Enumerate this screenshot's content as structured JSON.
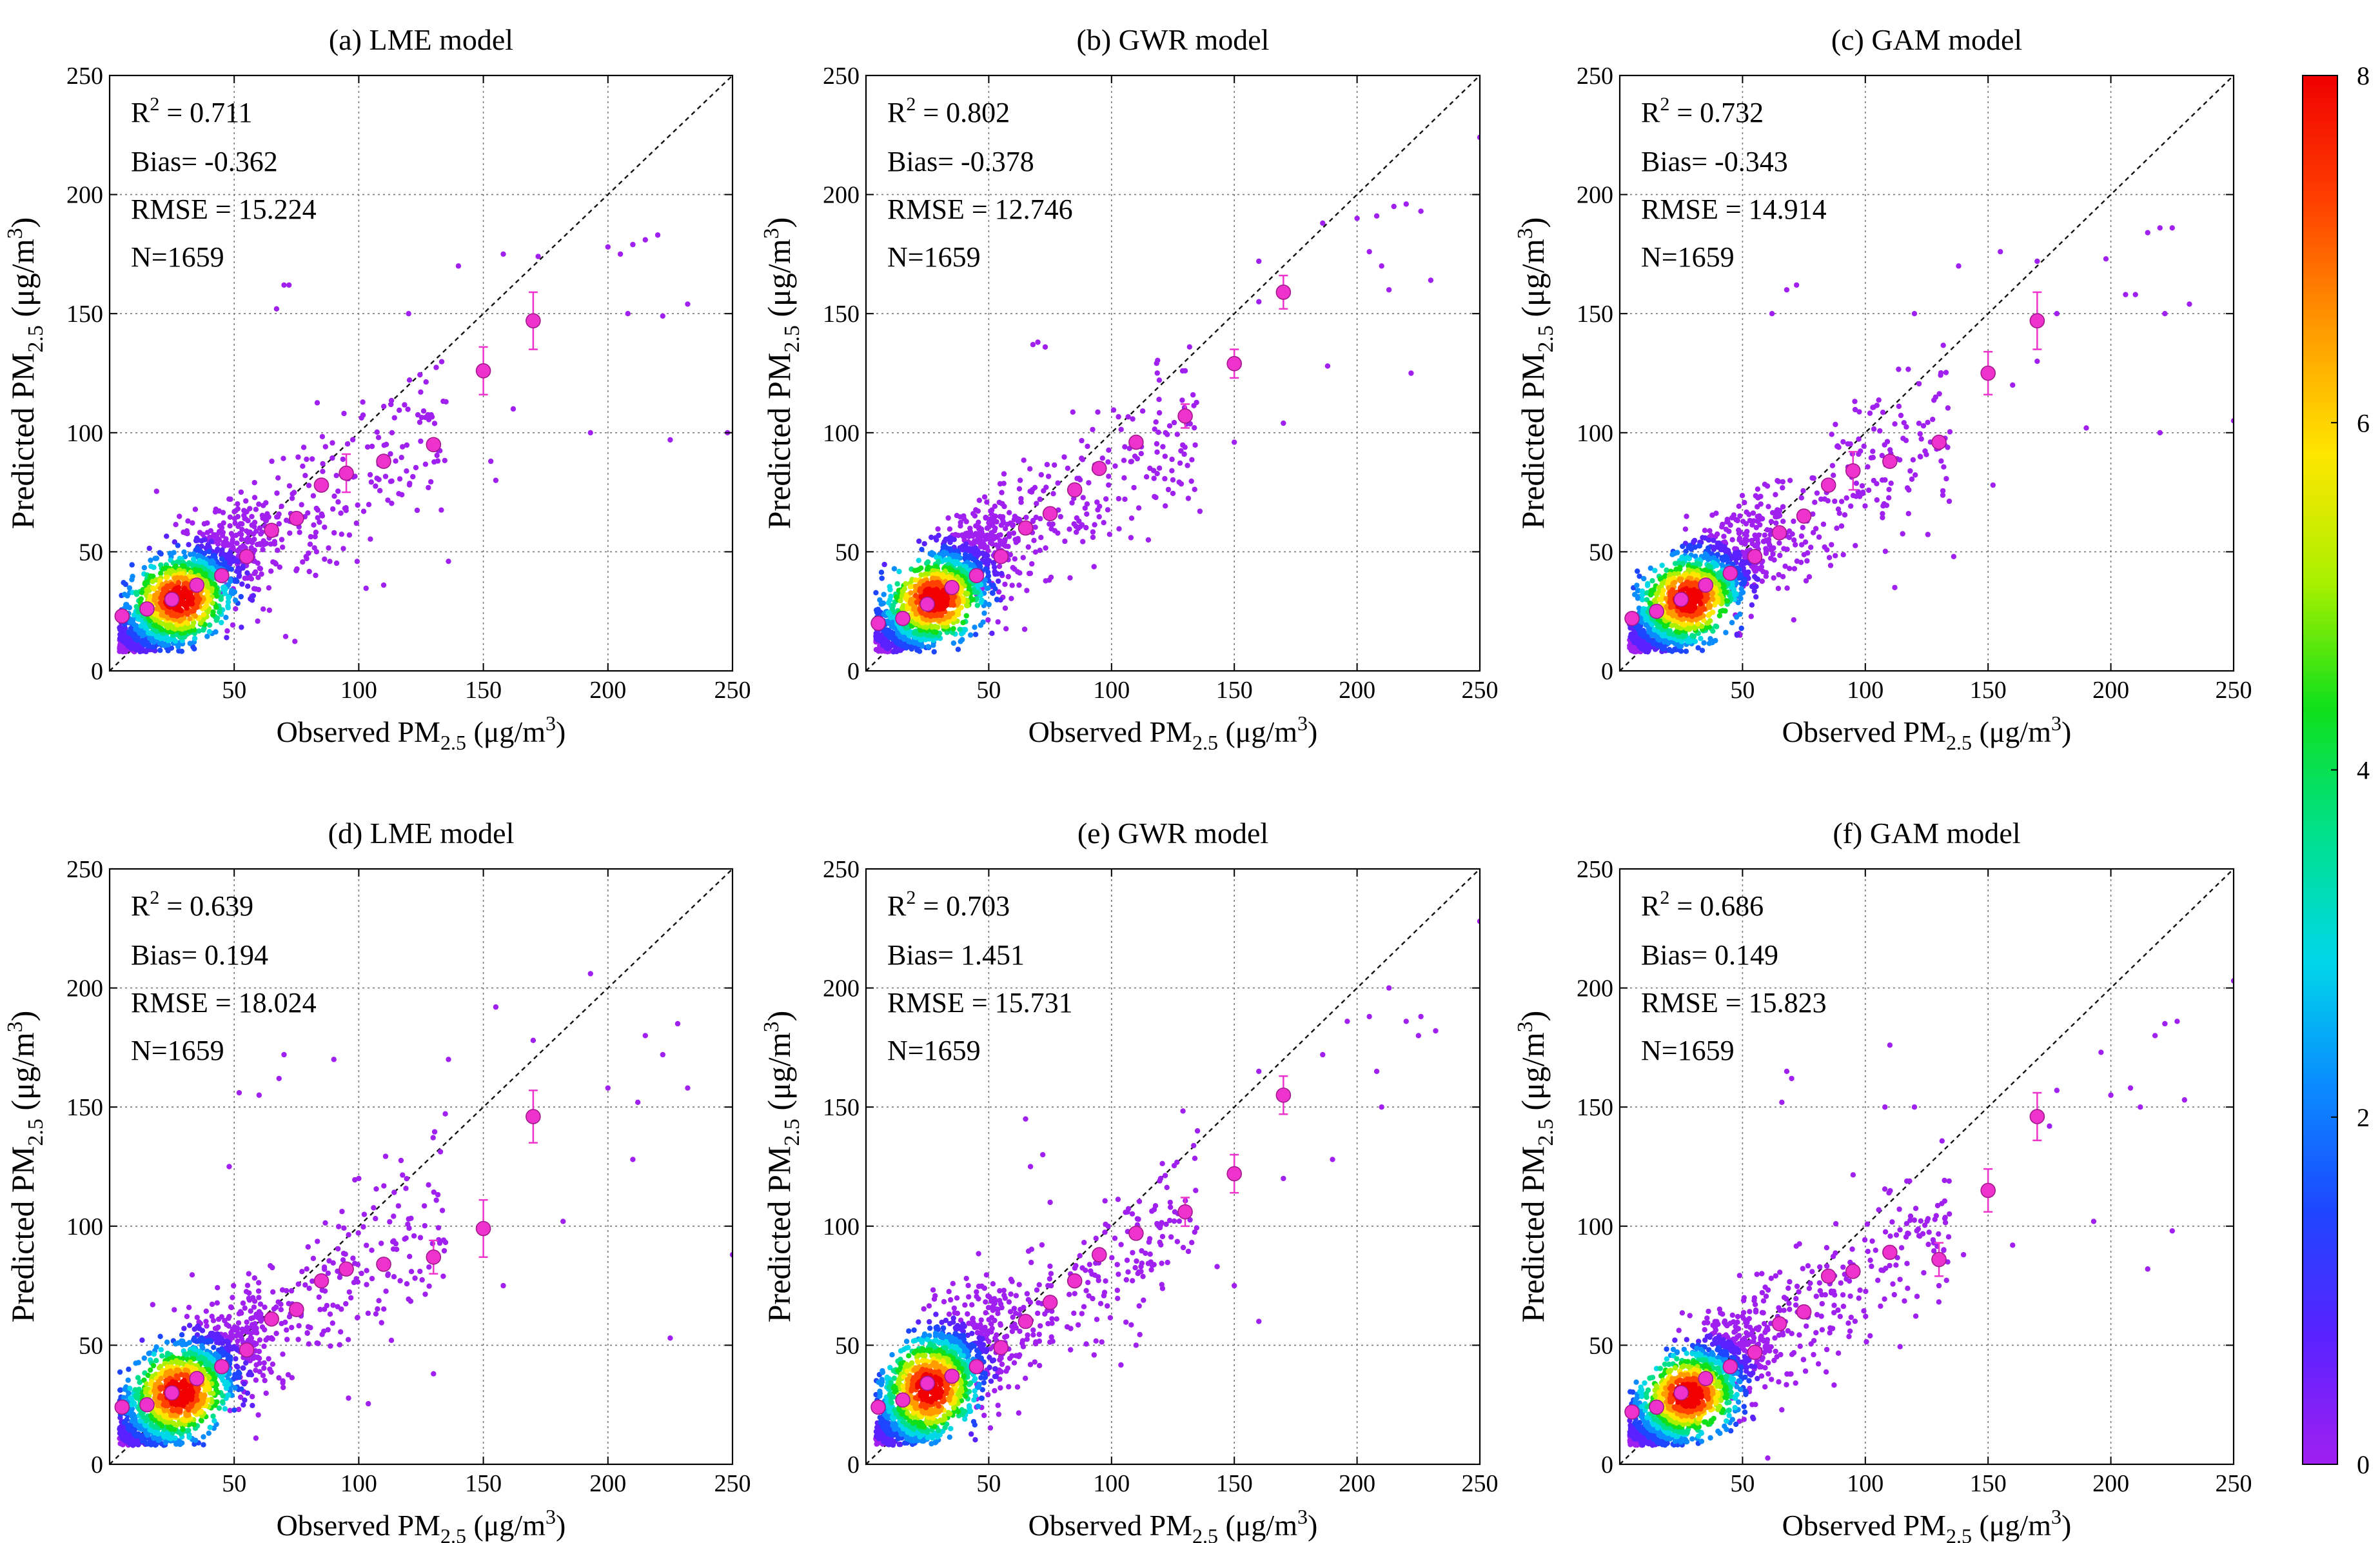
{
  "figure": {
    "colorbar": {
      "min": 0,
      "max": 8,
      "ticks": [
        "0",
        "2",
        "4",
        "6",
        "8"
      ],
      "colors": [
        "#a020f0",
        "#5a22ff",
        "#1e46ff",
        "#0a8cff",
        "#00d8e8",
        "#00e08a",
        "#10e01a",
        "#aaf000",
        "#ffe600",
        "#ff9a00",
        "#ff4000",
        "#f00000"
      ]
    }
  },
  "chart_data": [
    {
      "type": "scatter",
      "id": "a",
      "title": "(a) LME model",
      "xlabel": "Observed PM2.5 (μg/m3)",
      "ylabel": "Predicted PM2.5 (μg/m3)",
      "xlim": [
        0,
        250
      ],
      "ylim": [
        0,
        250
      ],
      "x_ticks": [
        "50",
        "100",
        "150",
        "200",
        "250"
      ],
      "y_ticks": [
        "0",
        "50",
        "100",
        "150",
        "200",
        "250"
      ],
      "grid": true,
      "one_to_one_line": true,
      "stats": {
        "r2": "R2 = 0.711",
        "bias": "Bias= -0.362",
        "rmse": "RMSE = 15.224",
        "n": "N=1659"
      },
      "stats_values": {
        "r2": 0.711,
        "bias": -0.362,
        "rmse": 15.224,
        "n": 1659
      },
      "density_cloud": {
        "center": [
          28,
          30
        ],
        "spread": [
          16,
          11
        ],
        "slope": 0.75
      },
      "binned_means": [
        [
          5,
          23
        ],
        [
          15,
          26
        ],
        [
          25,
          30
        ],
        [
          35,
          36
        ],
        [
          45,
          40
        ],
        [
          55,
          48
        ],
        [
          65,
          59
        ],
        [
          75,
          64
        ],
        [
          85,
          78
        ],
        [
          95,
          83
        ],
        [
          110,
          88
        ],
        [
          130,
          95
        ],
        [
          150,
          126
        ],
        [
          170,
          147
        ]
      ],
      "error_bars": [
        [
          95,
          8
        ],
        [
          150,
          10
        ],
        [
          170,
          12
        ]
      ],
      "outliers": [
        [
          70,
          162
        ],
        [
          67,
          152
        ],
        [
          72,
          162
        ],
        [
          140,
          170
        ],
        [
          158,
          175
        ],
        [
          172,
          174
        ],
        [
          200,
          178
        ],
        [
          205,
          175
        ],
        [
          210,
          179
        ],
        [
          215,
          181
        ],
        [
          220,
          183
        ],
        [
          208,
          150
        ],
        [
          222,
          149
        ],
        [
          232,
          154
        ],
        [
          248,
          100
        ],
        [
          225,
          97
        ],
        [
          193,
          100
        ],
        [
          153,
          88
        ],
        [
          162,
          110
        ],
        [
          120,
          150
        ],
        [
          135,
          113
        ],
        [
          136,
          46
        ],
        [
          155,
          80
        ],
        [
          110,
          36
        ]
      ]
    },
    {
      "type": "scatter",
      "id": "b",
      "title": "(b) GWR model",
      "xlabel": "Observed PM2.5 (μg/m3)",
      "ylabel": "Predicted PM2.5 (μg/m3)",
      "xlim": [
        0,
        250
      ],
      "ylim": [
        0,
        250
      ],
      "x_ticks": [
        "50",
        "100",
        "150",
        "200",
        "250"
      ],
      "y_ticks": [
        "0",
        "50",
        "100",
        "150",
        "200",
        "250"
      ],
      "grid": true,
      "one_to_one_line": true,
      "stats": {
        "r2": "R2 = 0.802",
        "bias": "Bias= -0.378",
        "rmse": "RMSE = 12.746",
        "n": "N=1659"
      },
      "stats_values": {
        "r2": 0.802,
        "bias": -0.378,
        "rmse": 12.746,
        "n": 1659
      },
      "density_cloud": {
        "center": [
          28,
          30
        ],
        "spread": [
          16,
          11
        ],
        "slope": 0.85
      },
      "binned_means": [
        [
          5,
          20
        ],
        [
          15,
          22
        ],
        [
          25,
          28
        ],
        [
          35,
          35
        ],
        [
          45,
          40
        ],
        [
          55,
          48
        ],
        [
          65,
          60
        ],
        [
          75,
          66
        ],
        [
          85,
          76
        ],
        [
          95,
          85
        ],
        [
          110,
          96
        ],
        [
          130,
          107
        ],
        [
          150,
          129
        ],
        [
          170,
          159
        ]
      ],
      "error_bars": [
        [
          130,
          5
        ],
        [
          150,
          6
        ],
        [
          170,
          7
        ]
      ],
      "outliers": [
        [
          68,
          137
        ],
        [
          70,
          138
        ],
        [
          73,
          136
        ],
        [
          130,
          126
        ],
        [
          160,
          172
        ],
        [
          186,
          188
        ],
        [
          200,
          190
        ],
        [
          208,
          191
        ],
        [
          215,
          195
        ],
        [
          220,
          196
        ],
        [
          226,
          193
        ],
        [
          205,
          176
        ],
        [
          210,
          170
        ],
        [
          213,
          160
        ],
        [
          230,
          164
        ],
        [
          250,
          224
        ],
        [
          222,
          125
        ],
        [
          188,
          128
        ],
        [
          150,
          96
        ],
        [
          170,
          104
        ],
        [
          136,
          67
        ],
        [
          115,
          55
        ],
        [
          122,
          100
        ],
        [
          160,
          155
        ]
      ]
    },
    {
      "type": "scatter",
      "id": "c",
      "title": "(c) GAM model",
      "xlabel": "Observed PM2.5 (μg/m3)",
      "ylabel": "Predicted PM2.5 (μg/m3)",
      "xlim": [
        0,
        250
      ],
      "ylim": [
        0,
        250
      ],
      "x_ticks": [
        "50",
        "100",
        "150",
        "200",
        "250"
      ],
      "y_ticks": [
        "0",
        "50",
        "100",
        "150",
        "200",
        "250"
      ],
      "grid": true,
      "one_to_one_line": true,
      "stats": {
        "r2": "R2 = 0.732",
        "bias": "Bias= -0.343",
        "rmse": "RMSE = 14.914",
        "n": "N=1659"
      },
      "stats_values": {
        "r2": 0.732,
        "bias": -0.343,
        "rmse": 14.914,
        "n": 1659
      },
      "density_cloud": {
        "center": [
          28,
          30
        ],
        "spread": [
          16,
          11
        ],
        "slope": 0.78
      },
      "binned_means": [
        [
          5,
          22
        ],
        [
          15,
          25
        ],
        [
          25,
          30
        ],
        [
          35,
          36
        ],
        [
          45,
          41
        ],
        [
          55,
          48
        ],
        [
          65,
          58
        ],
        [
          75,
          65
        ],
        [
          85,
          78
        ],
        [
          95,
          84
        ],
        [
          110,
          88
        ],
        [
          130,
          96
        ],
        [
          150,
          125
        ],
        [
          170,
          147
        ]
      ],
      "error_bars": [
        [
          95,
          8
        ],
        [
          150,
          9
        ],
        [
          170,
          12
        ]
      ],
      "outliers": [
        [
          68,
          160
        ],
        [
          72,
          162
        ],
        [
          62,
          150
        ],
        [
          138,
          170
        ],
        [
          155,
          176
        ],
        [
          170,
          172
        ],
        [
          198,
          173
        ],
        [
          206,
          158
        ],
        [
          210,
          158
        ],
        [
          215,
          184
        ],
        [
          220,
          186
        ],
        [
          225,
          186
        ],
        [
          232,
          154
        ],
        [
          222,
          150
        ],
        [
          250,
          105
        ],
        [
          190,
          102
        ],
        [
          220,
          100
        ],
        [
          160,
          120
        ],
        [
          170,
          130
        ],
        [
          152,
          78
        ],
        [
          136,
          48
        ],
        [
          112,
          35
        ],
        [
          120,
          150
        ],
        [
          178,
          150
        ]
      ]
    },
    {
      "type": "scatter",
      "id": "d",
      "title": "(d) LME model",
      "xlabel": "Observed PM2.5 (μg/m3)",
      "ylabel": "Predicted PM2.5 (μg/m3)",
      "xlim": [
        0,
        250
      ],
      "ylim": [
        0,
        250
      ],
      "x_ticks": [
        "50",
        "100",
        "150",
        "200",
        "250"
      ],
      "y_ticks": [
        "0",
        "50",
        "100",
        "150",
        "200",
        "250"
      ],
      "grid": true,
      "one_to_one_line": true,
      "stats": {
        "r2": "R2 = 0.639",
        "bias": "Bias= 0.194",
        "rmse": "RMSE = 18.024",
        "n": "N=1659"
      },
      "stats_values": {
        "r2": 0.639,
        "bias": 0.194,
        "rmse": 18.024,
        "n": 1659
      },
      "density_cloud": {
        "center": [
          28,
          30
        ],
        "spread": [
          16,
          12
        ],
        "slope": 0.72
      },
      "binned_means": [
        [
          5,
          24
        ],
        [
          15,
          25
        ],
        [
          25,
          30
        ],
        [
          35,
          36
        ],
        [
          45,
          41
        ],
        [
          55,
          48
        ],
        [
          65,
          61
        ],
        [
          75,
          65
        ],
        [
          85,
          77
        ],
        [
          95,
          82
        ],
        [
          110,
          84
        ],
        [
          130,
          87
        ],
        [
          150,
          99
        ],
        [
          170,
          146
        ]
      ],
      "error_bars": [
        [
          130,
          7
        ],
        [
          150,
          12
        ],
        [
          170,
          11
        ]
      ],
      "outliers": [
        [
          70,
          172
        ],
        [
          68,
          162
        ],
        [
          52,
          156
        ],
        [
          60,
          155
        ],
        [
          136,
          170
        ],
        [
          155,
          192
        ],
        [
          170,
          178
        ],
        [
          193,
          206
        ],
        [
          200,
          158
        ],
        [
          212,
          152
        ],
        [
          215,
          180
        ],
        [
          222,
          172
        ],
        [
          228,
          185
        ],
        [
          232,
          158
        ],
        [
          250,
          88
        ],
        [
          225,
          53
        ],
        [
          182,
          102
        ],
        [
          130,
          38
        ],
        [
          158,
          75
        ],
        [
          120,
          103
        ],
        [
          100,
          120
        ],
        [
          90,
          170
        ],
        [
          48,
          125
        ],
        [
          210,
          128
        ]
      ]
    },
    {
      "type": "scatter",
      "id": "e",
      "title": "(e) GWR model",
      "xlabel": "Observed PM2.5 (μg/m3)",
      "ylabel": "Predicted PM2.5 (μg/m3)",
      "xlim": [
        0,
        250
      ],
      "ylim": [
        0,
        250
      ],
      "x_ticks": [
        "50",
        "100",
        "150",
        "200",
        "250"
      ],
      "y_ticks": [
        "0",
        "50",
        "100",
        "150",
        "200",
        "250"
      ],
      "grid": true,
      "one_to_one_line": true,
      "stats": {
        "r2": "R2 = 0.703",
        "bias": "Bias= 1.451",
        "rmse": "RMSE = 15.731",
        "n": "N=1659"
      },
      "stats_values": {
        "r2": 0.703,
        "bias": 1.451,
        "rmse": 15.731,
        "n": 1659
      },
      "density_cloud": {
        "center": [
          26,
          32
        ],
        "spread": [
          15,
          13
        ],
        "slope": 0.82
      },
      "binned_means": [
        [
          5,
          24
        ],
        [
          15,
          27
        ],
        [
          25,
          34
        ],
        [
          35,
          37
        ],
        [
          45,
          41
        ],
        [
          55,
          49
        ],
        [
          65,
          60
        ],
        [
          75,
          68
        ],
        [
          85,
          77
        ],
        [
          95,
          88
        ],
        [
          110,
          97
        ],
        [
          130,
          106
        ],
        [
          150,
          122
        ],
        [
          170,
          155
        ]
      ],
      "error_bars": [
        [
          130,
          6
        ],
        [
          150,
          8
        ],
        [
          170,
          8
        ]
      ],
      "outliers": [
        [
          65,
          145
        ],
        [
          72,
          130
        ],
        [
          67,
          125
        ],
        [
          135,
          140
        ],
        [
          160,
          165
        ],
        [
          186,
          172
        ],
        [
          196,
          186
        ],
        [
          205,
          188
        ],
        [
          213,
          200
        ],
        [
          220,
          186
        ],
        [
          226,
          188
        ],
        [
          232,
          182
        ],
        [
          208,
          165
        ],
        [
          210,
          150
        ],
        [
          250,
          228
        ],
        [
          190,
          128
        ],
        [
          160,
          60
        ],
        [
          150,
          75
        ],
        [
          120,
          120
        ],
        [
          143,
          83
        ],
        [
          110,
          50
        ],
        [
          75,
          110
        ],
        [
          225,
          180
        ],
        [
          170,
          120
        ]
      ]
    },
    {
      "type": "scatter",
      "id": "f",
      "title": "(f) GAM model",
      "xlabel": "Observed PM2.5 (μg/m3)",
      "ylabel": "Predicted PM2.5 (μg/m3)",
      "xlim": [
        0,
        250
      ],
      "ylim": [
        0,
        250
      ],
      "x_ticks": [
        "50",
        "100",
        "150",
        "200",
        "250"
      ],
      "y_ticks": [
        "0",
        "50",
        "100",
        "150",
        "200",
        "250"
      ],
      "grid": true,
      "one_to_one_line": true,
      "stats": {
        "r2": "R2 = 0.686",
        "bias": "Bias= 0.149",
        "rmse": "RMSE = 15.823",
        "n": "N=1659"
      },
      "stats_values": {
        "r2": 0.686,
        "bias": 0.149,
        "rmse": 15.823,
        "n": 1659
      },
      "density_cloud": {
        "center": [
          28,
          29
        ],
        "spread": [
          16,
          11
        ],
        "slope": 0.74
      },
      "binned_means": [
        [
          5,
          22
        ],
        [
          15,
          24
        ],
        [
          25,
          30
        ],
        [
          35,
          36
        ],
        [
          45,
          41
        ],
        [
          55,
          47
        ],
        [
          65,
          59
        ],
        [
          75,
          64
        ],
        [
          85,
          79
        ],
        [
          95,
          81
        ],
        [
          110,
          89
        ],
        [
          130,
          86
        ],
        [
          150,
          115
        ],
        [
          170,
          146
        ]
      ],
      "error_bars": [
        [
          130,
          7
        ],
        [
          150,
          9
        ],
        [
          170,
          10
        ]
      ],
      "outliers": [
        [
          68,
          165
        ],
        [
          70,
          162
        ],
        [
          66,
          152
        ],
        [
          110,
          176
        ],
        [
          108,
          150
        ],
        [
          178,
          157
        ],
        [
          196,
          173
        ],
        [
          208,
          158
        ],
        [
          212,
          150
        ],
        [
          218,
          180
        ],
        [
          222,
          185
        ],
        [
          227,
          186
        ],
        [
          230,
          153
        ],
        [
          250,
          203
        ],
        [
          215,
          82
        ],
        [
          193,
          102
        ],
        [
          225,
          98
        ],
        [
          140,
          88
        ],
        [
          160,
          92
        ],
        [
          175,
          142
        ],
        [
          120,
          150
        ],
        [
          88,
          101
        ],
        [
          130,
          75
        ],
        [
          200,
          155
        ]
      ]
    }
  ]
}
